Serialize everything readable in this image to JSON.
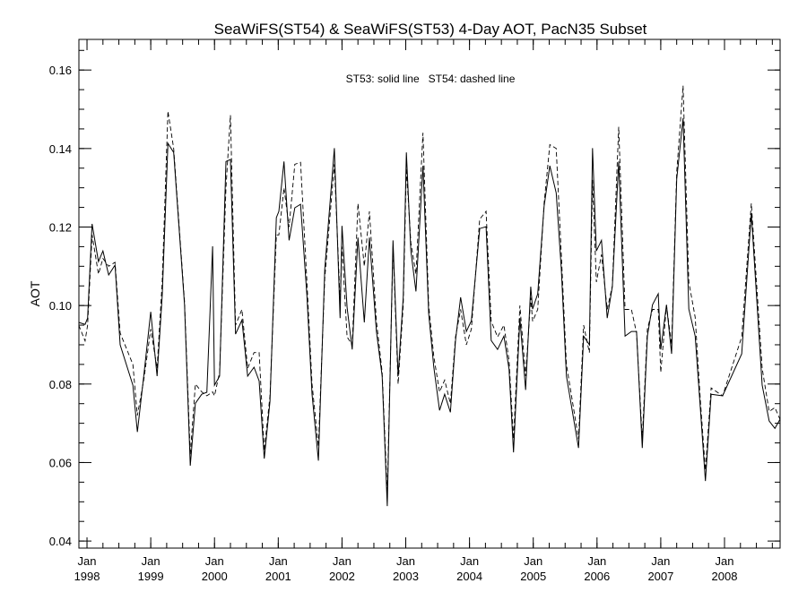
{
  "chart_data": {
    "type": "line",
    "title": "SeaWiFS(ST54) & SeaWiFS(ST53) 4-Day AOT, PacN35 Subset",
    "xlabel": "",
    "ylabel": "AOT",
    "annotation": "ST53: solid line   ST54: dashed line",
    "xlim": [
      1997.873,
      2008.872
    ],
    "ylim": [
      0.0382,
      0.1678
    ],
    "grid": false,
    "y_ticks": [
      {
        "value": 0.04,
        "label": "0.04"
      },
      {
        "value": 0.06,
        "label": "0.06"
      },
      {
        "value": 0.08,
        "label": "0.08"
      },
      {
        "value": 0.1,
        "label": "0.10"
      },
      {
        "value": 0.12,
        "label": "0.12"
      },
      {
        "value": 0.14,
        "label": "0.14"
      },
      {
        "value": 0.16,
        "label": "0.16"
      }
    ],
    "x_ticks": [
      {
        "value": 1998,
        "month": "Jan",
        "year": "1998"
      },
      {
        "value": 1999,
        "month": "Jan",
        "year": "1999"
      },
      {
        "value": 2000,
        "month": "Jan",
        "year": "2000"
      },
      {
        "value": 2001,
        "month": "Jan",
        "year": "2001"
      },
      {
        "value": 2002,
        "month": "Jan",
        "year": "2002"
      },
      {
        "value": 2003,
        "month": "Jan",
        "year": "2003"
      },
      {
        "value": 2004,
        "month": "Jan",
        "year": "2004"
      },
      {
        "value": 2005,
        "month": "Jan",
        "year": "2005"
      },
      {
        "value": 2006,
        "month": "Jan",
        "year": "2006"
      },
      {
        "value": 2007,
        "month": "Jan",
        "year": "2007"
      },
      {
        "value": 2008,
        "month": "Jan",
        "year": "2008"
      }
    ],
    "series": [
      {
        "name": "ST53",
        "style": "solid",
        "color": "#000000",
        "points": [
          [
            1997.87,
            0.0957
          ],
          [
            1997.97,
            0.0952
          ],
          [
            1998.01,
            0.0968
          ],
          [
            1998.08,
            0.1208
          ],
          [
            1998.18,
            0.1112
          ],
          [
            1998.25,
            0.1139
          ],
          [
            1998.34,
            0.1078
          ],
          [
            1998.44,
            0.1103
          ],
          [
            1998.52,
            0.09
          ],
          [
            1998.72,
            0.0797
          ],
          [
            1998.79,
            0.0678
          ],
          [
            1998.89,
            0.082
          ],
          [
            1999.0,
            0.0984
          ],
          [
            1999.1,
            0.082
          ],
          [
            1999.18,
            0.1025
          ],
          [
            1999.27,
            0.1413
          ],
          [
            1999.36,
            0.139
          ],
          [
            1999.53,
            0.1002
          ],
          [
            1999.62,
            0.0592
          ],
          [
            1999.7,
            0.0751
          ],
          [
            1999.8,
            0.0774
          ],
          [
            1999.88,
            0.0779
          ],
          [
            1999.97,
            0.1151
          ],
          [
            2000.0,
            0.0797
          ],
          [
            2000.08,
            0.082
          ],
          [
            2000.18,
            0.1367
          ],
          [
            2000.25,
            0.1372
          ],
          [
            2000.33,
            0.0927
          ],
          [
            2000.43,
            0.0963
          ],
          [
            2000.52,
            0.082
          ],
          [
            2000.62,
            0.0843
          ],
          [
            2000.7,
            0.0808
          ],
          [
            2000.78,
            0.061
          ],
          [
            2000.87,
            0.0756
          ],
          [
            2000.97,
            0.1224
          ],
          [
            2001.01,
            0.124
          ],
          [
            2001.09,
            0.1367
          ],
          [
            2001.17,
            0.1166
          ],
          [
            2001.26,
            0.1249
          ],
          [
            2001.35,
            0.1258
          ],
          [
            2001.45,
            0.1025
          ],
          [
            2001.53,
            0.0774
          ],
          [
            2001.63,
            0.0605
          ],
          [
            2001.73,
            0.1093
          ],
          [
            2001.88,
            0.1401
          ],
          [
            2001.97,
            0.0968
          ],
          [
            2002.0,
            0.1203
          ],
          [
            2002.08,
            0.0995
          ],
          [
            2002.16,
            0.0888
          ],
          [
            2002.25,
            0.1173
          ],
          [
            2002.35,
            0.0957
          ],
          [
            2002.43,
            0.1173
          ],
          [
            2002.54,
            0.0934
          ],
          [
            2002.63,
            0.082
          ],
          [
            2002.71,
            0.0489
          ],
          [
            2002.8,
            0.1166
          ],
          [
            2002.88,
            0.082
          ],
          [
            2002.96,
            0.1021
          ],
          [
            2003.01,
            0.139
          ],
          [
            2003.08,
            0.1139
          ],
          [
            2003.16,
            0.1036
          ],
          [
            2003.27,
            0.1356
          ],
          [
            2003.36,
            0.0979
          ],
          [
            2003.44,
            0.0843
          ],
          [
            2003.53,
            0.0733
          ],
          [
            2003.61,
            0.0774
          ],
          [
            2003.7,
            0.0728
          ],
          [
            2003.78,
            0.0911
          ],
          [
            2003.86,
            0.1021
          ],
          [
            2003.95,
            0.0934
          ],
          [
            2004.03,
            0.0961
          ],
          [
            2004.16,
            0.1196
          ],
          [
            2004.26,
            0.1201
          ],
          [
            2004.34,
            0.0911
          ],
          [
            2004.44,
            0.0888
          ],
          [
            2004.54,
            0.0922
          ],
          [
            2004.62,
            0.0838
          ],
          [
            2004.69,
            0.0626
          ],
          [
            2004.79,
            0.0968
          ],
          [
            2004.88,
            0.0785
          ],
          [
            2004.96,
            0.1048
          ],
          [
            2004.99,
            0.0991
          ],
          [
            2005.07,
            0.103
          ],
          [
            2005.17,
            0.1253
          ],
          [
            2005.26,
            0.1356
          ],
          [
            2005.36,
            0.1287
          ],
          [
            2005.44,
            0.1093
          ],
          [
            2005.52,
            0.082
          ],
          [
            2005.71,
            0.0637
          ],
          [
            2005.79,
            0.0922
          ],
          [
            2005.88,
            0.09
          ],
          [
            2005.93,
            0.1401
          ],
          [
            2005.99,
            0.1139
          ],
          [
            2006.07,
            0.1166
          ],
          [
            2006.16,
            0.0968
          ],
          [
            2006.24,
            0.1048
          ],
          [
            2006.34,
            0.1367
          ],
          [
            2006.44,
            0.0922
          ],
          [
            2006.54,
            0.0934
          ],
          [
            2006.62,
            0.0934
          ],
          [
            2006.71,
            0.0637
          ],
          [
            2006.79,
            0.0922
          ],
          [
            2006.87,
            0.1002
          ],
          [
            2006.96,
            0.103
          ],
          [
            2007.0,
            0.0888
          ],
          [
            2007.09,
            0.1002
          ],
          [
            2007.17,
            0.0877
          ],
          [
            2007.25,
            0.1322
          ],
          [
            2007.35,
            0.1477
          ],
          [
            2007.44,
            0.0991
          ],
          [
            2007.54,
            0.0922
          ],
          [
            2007.62,
            0.074
          ],
          [
            2007.7,
            0.0553
          ],
          [
            2007.79,
            0.0774
          ],
          [
            2007.97,
            0.077
          ],
          [
            2008.27,
            0.0877
          ],
          [
            2008.42,
            0.1235
          ],
          [
            2008.59,
            0.0797
          ],
          [
            2008.7,
            0.0706
          ],
          [
            2008.79,
            0.0687
          ],
          [
            2008.87,
            0.071
          ]
        ]
      },
      {
        "name": "ST54",
        "style": "dashed",
        "color": "#000000",
        "points": [
          [
            1997.87,
            0.095
          ],
          [
            1997.97,
            0.091
          ],
          [
            1998.01,
            0.095
          ],
          [
            1998.08,
            0.118
          ],
          [
            1998.18,
            0.108
          ],
          [
            1998.25,
            0.112
          ],
          [
            1998.34,
            0.11
          ],
          [
            1998.44,
            0.111
          ],
          [
            1998.52,
            0.093
          ],
          [
            1998.72,
            0.085
          ],
          [
            1998.79,
            0.072
          ],
          [
            1998.89,
            0.081
          ],
          [
            1999.0,
            0.094
          ],
          [
            1999.1,
            0.084
          ],
          [
            1999.18,
            0.106
          ],
          [
            1999.27,
            0.1495
          ],
          [
            1999.36,
            0.14
          ],
          [
            1999.53,
            0.101
          ],
          [
            1999.62,
            0.062
          ],
          [
            1999.7,
            0.08
          ],
          [
            1999.8,
            0.078
          ],
          [
            1999.88,
            0.077
          ],
          [
            1999.97,
            0.078
          ],
          [
            2000.0,
            0.077
          ],
          [
            2000.08,
            0.083
          ],
          [
            2000.18,
            0.13
          ],
          [
            2000.25,
            0.1485
          ],
          [
            2000.33,
            0.095
          ],
          [
            2000.43,
            0.099
          ],
          [
            2000.52,
            0.084
          ],
          [
            2000.62,
            0.088
          ],
          [
            2000.7,
            0.088
          ],
          [
            2000.78,
            0.063
          ],
          [
            2000.87,
            0.077
          ],
          [
            2000.97,
            0.118
          ],
          [
            2001.01,
            0.118
          ],
          [
            2001.09,
            0.13
          ],
          [
            2001.17,
            0.12
          ],
          [
            2001.26,
            0.136
          ],
          [
            2001.35,
            0.1365
          ],
          [
            2001.45,
            0.106
          ],
          [
            2001.53,
            0.08
          ],
          [
            2001.63,
            0.064
          ],
          [
            2001.73,
            0.107
          ],
          [
            2001.88,
            0.136
          ],
          [
            2001.97,
            0.101
          ],
          [
            2002.0,
            0.115
          ],
          [
            2002.08,
            0.092
          ],
          [
            2002.16,
            0.09
          ],
          [
            2002.25,
            0.126
          ],
          [
            2002.35,
            0.11
          ],
          [
            2002.43,
            0.124
          ],
          [
            2002.54,
            0.096
          ],
          [
            2002.63,
            0.083
          ],
          [
            2002.71,
            0.052
          ],
          [
            2002.8,
            0.115
          ],
          [
            2002.88,
            0.08
          ],
          [
            2002.96,
            0.1
          ],
          [
            2003.01,
            0.135
          ],
          [
            2003.08,
            0.116
          ],
          [
            2003.16,
            0.108
          ],
          [
            2003.27,
            0.144
          ],
          [
            2003.36,
            0.1
          ],
          [
            2003.44,
            0.087
          ],
          [
            2003.53,
            0.078
          ],
          [
            2003.61,
            0.081
          ],
          [
            2003.7,
            0.075
          ],
          [
            2003.78,
            0.092
          ],
          [
            2003.86,
            0.099
          ],
          [
            2003.95,
            0.09
          ],
          [
            2004.03,
            0.094
          ],
          [
            2004.16,
            0.122
          ],
          [
            2004.26,
            0.124
          ],
          [
            2004.34,
            0.096
          ],
          [
            2004.44,
            0.092
          ],
          [
            2004.54,
            0.095
          ],
          [
            2004.62,
            0.086
          ],
          [
            2004.69,
            0.066
          ],
          [
            2004.79,
            0.1
          ],
          [
            2004.88,
            0.082
          ],
          [
            2004.96,
            0.102
          ],
          [
            2004.99,
            0.096
          ],
          [
            2005.07,
            0.099
          ],
          [
            2005.17,
            0.126
          ],
          [
            2005.26,
            0.141
          ],
          [
            2005.36,
            0.14
          ],
          [
            2005.44,
            0.113
          ],
          [
            2005.52,
            0.085
          ],
          [
            2005.71,
            0.066
          ],
          [
            2005.79,
            0.095
          ],
          [
            2005.88,
            0.088
          ],
          [
            2005.93,
            0.132
          ],
          [
            2005.99,
            0.106
          ],
          [
            2006.07,
            0.113
          ],
          [
            2006.16,
            0.099
          ],
          [
            2006.24,
            0.105
          ],
          [
            2006.34,
            0.1455
          ],
          [
            2006.44,
            0.099
          ],
          [
            2006.54,
            0.099
          ],
          [
            2006.62,
            0.093
          ],
          [
            2006.71,
            0.066
          ],
          [
            2006.79,
            0.094
          ],
          [
            2006.87,
            0.099
          ],
          [
            2006.96,
            0.099
          ],
          [
            2007.0,
            0.083
          ],
          [
            2007.09,
            0.1
          ],
          [
            2007.17,
            0.09
          ],
          [
            2007.25,
            0.134
          ],
          [
            2007.35,
            0.156
          ],
          [
            2007.44,
            0.106
          ],
          [
            2007.54,
            0.097
          ],
          [
            2007.62,
            0.076
          ],
          [
            2007.7,
            0.058
          ],
          [
            2007.79,
            0.079
          ],
          [
            2007.97,
            0.077
          ],
          [
            2008.27,
            0.092
          ],
          [
            2008.42,
            0.126
          ],
          [
            2008.59,
            0.084
          ],
          [
            2008.7,
            0.073
          ],
          [
            2008.79,
            0.074
          ],
          [
            2008.87,
            0.071
          ]
        ]
      }
    ]
  }
}
